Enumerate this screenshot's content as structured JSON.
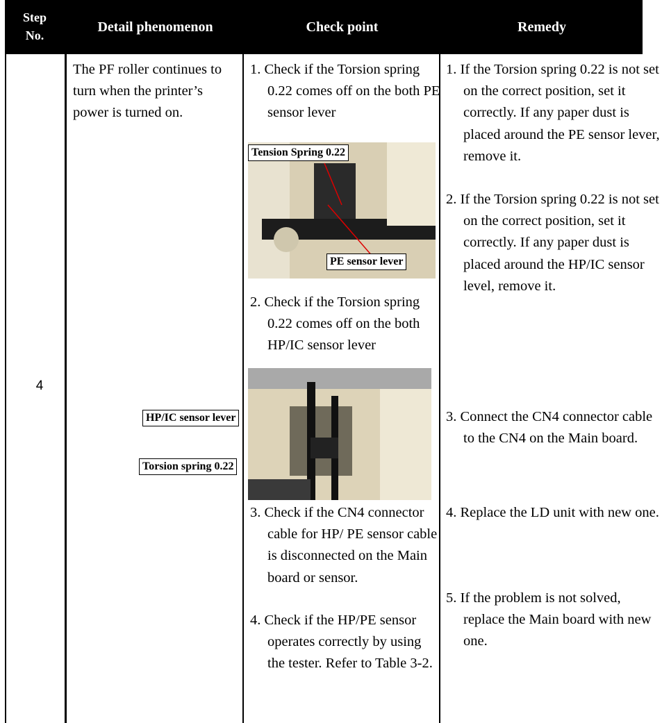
{
  "header": {
    "step": "Step No.",
    "detail": "Detail phenomenon",
    "check": "Check point",
    "remedy": "Remedy"
  },
  "rows": [
    {
      "step": "4",
      "detail": "The PF roller continues to turn when the printer’s power is turned on.",
      "check_points": [
        "1. Check if the Torsion spring 0.22 comes off on the both PE sensor lever",
        "2. Check if the Torsion spring 0.22 comes off on the both HP/IC sensor lever",
        "3. Check if the CN4 connector cable for HP/ PE sensor cable is disconnected on the Main board or sensor.",
        "4. Check if the HP/PE sensor operates correctly by using the tester.  Refer to Table 3-2."
      ],
      "figures": [
        {
          "labels": [
            "Tension Spring 0.22",
            "PE sensor lever"
          ]
        },
        {
          "labels": [
            "HP/IC sensor lever",
            "Torsion spring 0.22"
          ]
        }
      ],
      "remedies": [
        "1. If the Torsion spring 0.22 is not set on the correct position, set it correctly. If any paper dust is placed around the PE sensor lever,  remove it.",
        "2. If the Torsion spring 0.22 is not set on the correct position, set it correctly. If any paper dust is placed around the HP/IC sensor level, remove it.",
        "3. Connect the CN4 connector cable to the CN4 on the Main board.",
        "4. Replace the LD unit with new one.",
        "5. If the problem is not solved, replace the Main board with new one."
      ]
    }
  ]
}
